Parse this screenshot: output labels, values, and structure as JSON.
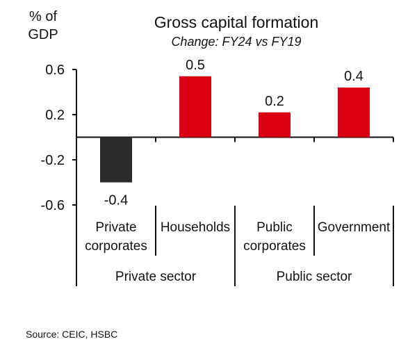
{
  "chart_data": {
    "type": "bar",
    "title": "Gross capital formation",
    "subtitle": "Change: FY24 vs FY19",
    "ylabel": "% of GDP",
    "ylabel_lines": [
      "% of",
      "GDP"
    ],
    "ylim": [
      -0.6,
      0.6
    ],
    "yticks": [
      0.6,
      0.2,
      -0.2,
      -0.6
    ],
    "ytick_labels": [
      "0.6",
      "0.2",
      "-0.2",
      "-0.6"
    ],
    "categories": [
      {
        "lines": [
          "Private",
          "corporates"
        ]
      },
      {
        "lines": [
          "Households"
        ]
      },
      {
        "lines": [
          "Public",
          "corporates"
        ]
      },
      {
        "lines": [
          "Government"
        ]
      }
    ],
    "groups": [
      {
        "label": "Private sector",
        "span": 2
      },
      {
        "label": "Public sector",
        "span": 2
      }
    ],
    "values": [
      -0.4,
      0.54,
      0.22,
      0.44
    ],
    "data_labels": [
      "-0.4",
      "0.5",
      "0.2",
      "0.4"
    ],
    "colors": [
      "#2b2b2b",
      "#db0011",
      "#db0011",
      "#db0011"
    ],
    "grid": false,
    "legend": "none"
  },
  "source": "Source: CEIC, HSBC"
}
